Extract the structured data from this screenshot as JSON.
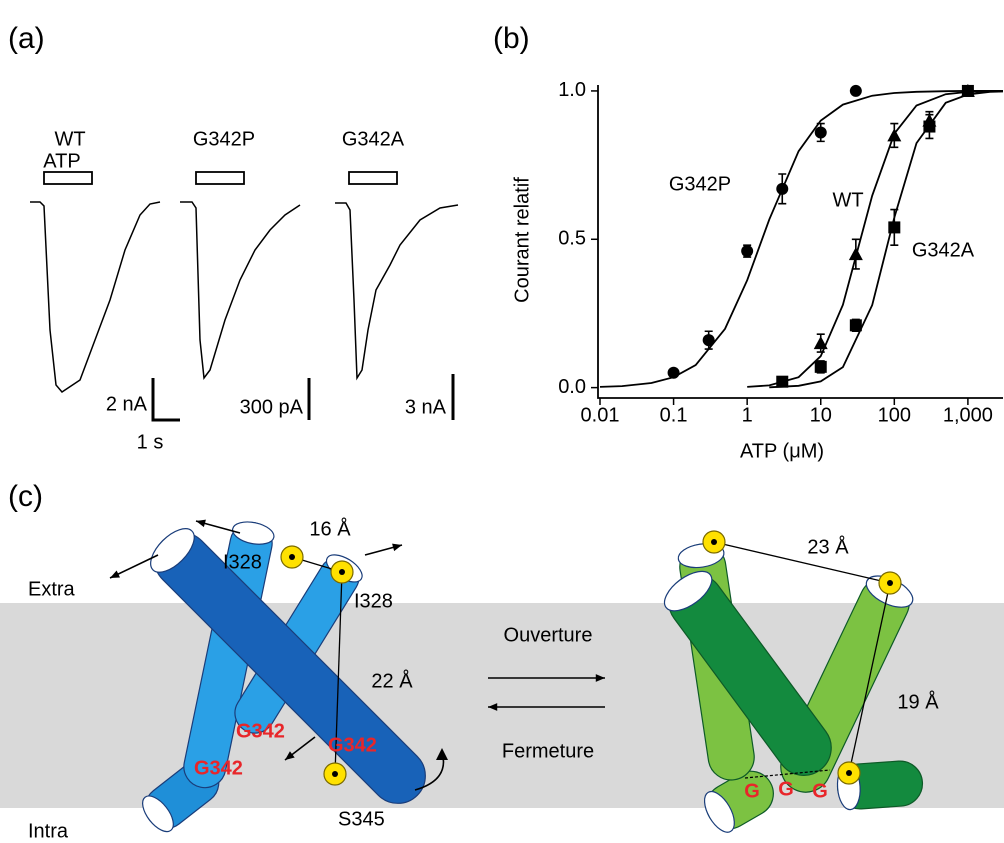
{
  "panel_labels": [
    "(a)",
    "(b)",
    "(c)"
  ],
  "traces": {
    "stimulus": "ATP",
    "time_scale": "1 s",
    "items": [
      {
        "name": "WT",
        "scale": "2 nA"
      },
      {
        "name": "G342P",
        "scale": "300 pA"
      },
      {
        "name": "G342A",
        "scale": "3 nA"
      }
    ]
  },
  "chart_data": {
    "type": "scatter",
    "xlabel": "ATP (μM)",
    "ylabel": "Courant relatif",
    "log_x": true,
    "grid": false,
    "xlim": [
      0.01,
      3000
    ],
    "ylim": [
      -0.035,
      1.02
    ],
    "xticks": [
      0.01,
      0.1,
      1,
      10,
      100,
      {
        "value": 1000,
        "label": "1,000"
      }
    ],
    "yticks": [
      {
        "value": 0,
        "label": "0.0"
      },
      {
        "value": 0.5,
        "label": "0.5"
      },
      {
        "value": 1,
        "label": "1.0"
      }
    ],
    "series": [
      {
        "name": "G342P",
        "color": "#000000",
        "marker": "circle",
        "x": [
          0.1,
          0.3,
          1,
          3,
          10,
          30
        ],
        "values": [
          0.05,
          0.16,
          0.46,
          0.67,
          0.86,
          1.0
        ],
        "errors": [
          null,
          0.03,
          0.02,
          0.05,
          0.03,
          null
        ],
        "curve": {
          "x": [
            0.01,
            0.02,
            0.05,
            0.1,
            0.2,
            0.5,
            1,
            2,
            5,
            10,
            20,
            50,
            100,
            200,
            500,
            1000,
            3000
          ],
          "values": [
            0.0023,
            0.0052,
            0.0154,
            0.035,
            0.076,
            0.198,
            0.362,
            0.567,
            0.797,
            0.9,
            0.954,
            0.984,
            0.993,
            0.997,
            0.999,
            1.0,
            1.0
          ]
        }
      },
      {
        "name": "WT",
        "color": "#000000",
        "marker": "triangle",
        "x": [
          10,
          30,
          100,
          300,
          1000
        ],
        "values": [
          0.15,
          0.45,
          0.85,
          0.9,
          1.0
        ],
        "errors": [
          0.03,
          0.05,
          0.04,
          0.03,
          null
        ],
        "curve": {
          "x": [
            1,
            2,
            5,
            10,
            20,
            50,
            100,
            200,
            500,
            1000,
            2000,
            3000
          ],
          "values": [
            0.0024,
            0.0076,
            0.035,
            0.106,
            0.279,
            0.647,
            0.856,
            0.951,
            0.989,
            0.997,
            0.999,
            0.9995
          ]
        }
      },
      {
        "name": "G342A",
        "color": "#000000",
        "marker": "square",
        "x": [
          3,
          10,
          30,
          100,
          300,
          1000
        ],
        "values": [
          0.02,
          0.07,
          0.21,
          0.54,
          0.88,
          1.0
        ],
        "errors": [
          null,
          0.02,
          0.02,
          0.06,
          0.04,
          null
        ],
        "curve": {
          "x": [
            2,
            5,
            10,
            20,
            50,
            100,
            200,
            500,
            1000,
            2000,
            3000
          ],
          "values": [
            0.0012,
            0.006,
            0.021,
            0.069,
            0.278,
            0.573,
            0.824,
            0.96,
            0.988,
            0.997,
            0.998
          ]
        }
      }
    ]
  },
  "diagram": {
    "membrane": {
      "top": "Extra",
      "bottom": "Intra"
    },
    "closed": {
      "distances": [
        "16 Å",
        "22 Å"
      ],
      "residues": [
        "I328",
        "I328",
        "G342",
        "G342",
        "G342",
        "S345"
      ]
    },
    "transition": {
      "forward": "Ouverture",
      "backward": "Fermeture"
    },
    "open": {
      "distances": [
        "23 Å",
        "19 Å"
      ],
      "residues": [
        "G",
        "G",
        "G"
      ]
    }
  }
}
